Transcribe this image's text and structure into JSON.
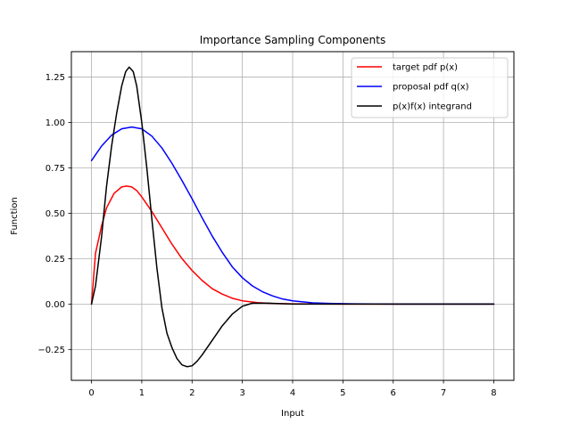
{
  "chart_data": {
    "type": "line",
    "title": "Importance Sampling Components",
    "xlabel": "Input",
    "ylabel": "Function",
    "xlim": [
      -0.4,
      8.4
    ],
    "ylim": [
      -0.42,
      1.39
    ],
    "xticks": [
      0,
      1,
      2,
      3,
      4,
      5,
      6,
      7,
      8
    ],
    "xtick_labels": [
      "0",
      "1",
      "2",
      "3",
      "4",
      "5",
      "6",
      "7",
      "8"
    ],
    "yticks": [
      -0.25,
      0.0,
      0.25,
      0.5,
      0.75,
      1.0,
      1.25
    ],
    "ytick_labels": [
      "−0.25",
      "0.00",
      "0.25",
      "0.50",
      "0.75",
      "1.00",
      "1.25"
    ],
    "grid": true,
    "legend_position": "upper right",
    "series": [
      {
        "name": "target pdf p(x)",
        "color": "#ff0000",
        "points": [
          [
            0.0,
            0.0
          ],
          [
            0.08,
            0.28
          ],
          [
            0.2,
            0.43
          ],
          [
            0.3,
            0.53
          ],
          [
            0.45,
            0.61
          ],
          [
            0.6,
            0.645
          ],
          [
            0.7,
            0.65
          ],
          [
            0.8,
            0.645
          ],
          [
            0.9,
            0.625
          ],
          [
            1.0,
            0.59
          ],
          [
            1.2,
            0.51
          ],
          [
            1.4,
            0.42
          ],
          [
            1.6,
            0.33
          ],
          [
            1.8,
            0.25
          ],
          [
            2.0,
            0.185
          ],
          [
            2.2,
            0.13
          ],
          [
            2.4,
            0.085
          ],
          [
            2.6,
            0.055
          ],
          [
            2.8,
            0.032
          ],
          [
            3.0,
            0.018
          ],
          [
            3.3,
            0.008
          ],
          [
            3.6,
            0.003
          ],
          [
            4.0,
            0.001
          ],
          [
            5.0,
            0.0
          ],
          [
            6.0,
            0.0
          ],
          [
            7.0,
            0.0
          ],
          [
            8.0,
            0.0
          ]
        ]
      },
      {
        "name": "proposal pdf q(x)",
        "color": "#0000ff",
        "points": [
          [
            0.0,
            0.79
          ],
          [
            0.2,
            0.87
          ],
          [
            0.4,
            0.93
          ],
          [
            0.6,
            0.965
          ],
          [
            0.8,
            0.975
          ],
          [
            1.0,
            0.965
          ],
          [
            1.2,
            0.925
          ],
          [
            1.4,
            0.86
          ],
          [
            1.6,
            0.775
          ],
          [
            1.8,
            0.68
          ],
          [
            2.0,
            0.58
          ],
          [
            2.2,
            0.475
          ],
          [
            2.4,
            0.375
          ],
          [
            2.6,
            0.285
          ],
          [
            2.8,
            0.205
          ],
          [
            3.0,
            0.145
          ],
          [
            3.2,
            0.1
          ],
          [
            3.4,
            0.068
          ],
          [
            3.6,
            0.045
          ],
          [
            3.8,
            0.028
          ],
          [
            4.0,
            0.018
          ],
          [
            4.4,
            0.007
          ],
          [
            4.8,
            0.003
          ],
          [
            5.2,
            0.001
          ],
          [
            6.0,
            0.0
          ],
          [
            7.0,
            0.0
          ],
          [
            8.0,
            0.0
          ]
        ]
      },
      {
        "name": "p(x)f(x) integrand",
        "color": "#000000",
        "points": [
          [
            0.0,
            0.0
          ],
          [
            0.08,
            0.1
          ],
          [
            0.2,
            0.37
          ],
          [
            0.3,
            0.65
          ],
          [
            0.4,
            0.87
          ],
          [
            0.5,
            1.05
          ],
          [
            0.6,
            1.2
          ],
          [
            0.68,
            1.28
          ],
          [
            0.75,
            1.305
          ],
          [
            0.83,
            1.28
          ],
          [
            0.9,
            1.2
          ],
          [
            1.0,
            1.0
          ],
          [
            1.1,
            0.75
          ],
          [
            1.2,
            0.47
          ],
          [
            1.3,
            0.2
          ],
          [
            1.4,
            -0.02
          ],
          [
            1.5,
            -0.16
          ],
          [
            1.6,
            -0.24
          ],
          [
            1.7,
            -0.3
          ],
          [
            1.8,
            -0.335
          ],
          [
            1.9,
            -0.345
          ],
          [
            2.0,
            -0.34
          ],
          [
            2.1,
            -0.315
          ],
          [
            2.2,
            -0.28
          ],
          [
            2.4,
            -0.2
          ],
          [
            2.6,
            -0.12
          ],
          [
            2.8,
            -0.055
          ],
          [
            3.0,
            -0.012
          ],
          [
            3.2,
            0.005
          ],
          [
            3.5,
            0.005
          ],
          [
            4.0,
            0.0
          ],
          [
            5.0,
            0.0
          ],
          [
            6.0,
            0.0
          ],
          [
            7.0,
            0.0
          ],
          [
            8.0,
            0.0
          ]
        ]
      }
    ]
  }
}
